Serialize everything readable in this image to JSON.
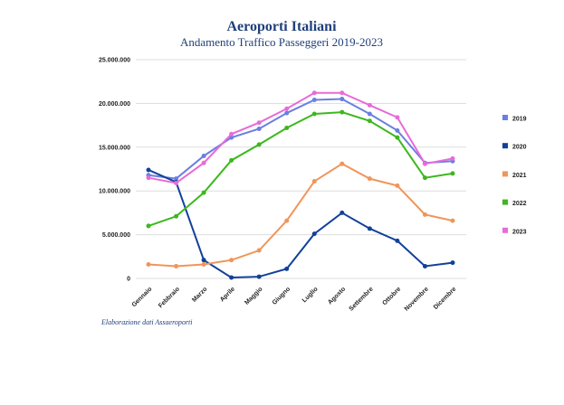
{
  "chart_data": {
    "type": "line",
    "title": "Aeroporti Italiani",
    "subtitle": "Andamento Traffico Passeggeri 2019-2023",
    "note": "Elaborazione dati Assaeroporti",
    "categories": [
      "Gennaio",
      "Febbraio",
      "Marzo",
      "Aprile",
      "Maggio",
      "Giugno",
      "Luglio",
      "Agosto",
      "Settembre",
      "Ottobre",
      "Novembre",
      "Dicembre"
    ],
    "ylim": [
      0,
      25000000
    ],
    "yticks": [
      0,
      {
        "value": 5000000,
        "label": "5.000.000"
      },
      {
        "value": 10000000,
        "label": "10.000.000"
      },
      {
        "value": 15000000,
        "label": "15.000.000"
      },
      {
        "value": 20000000,
        "label": "20.000.000"
      },
      {
        "value": 25000000,
        "label": "25.000.000"
      }
    ],
    "grid": true,
    "legend": "right",
    "series": [
      {
        "name": "2019",
        "color": "#6a7fe2",
        "values": [
          11800000,
          11400000,
          14000000,
          16100000,
          17100000,
          18900000,
          20400000,
          20500000,
          18800000,
          16900000,
          13200000,
          13400000
        ]
      },
      {
        "name": "2020",
        "color": "#12419a",
        "values": [
          12400000,
          11000000,
          2100000,
          100000,
          200000,
          1100000,
          5100000,
          7500000,
          5700000,
          4300000,
          1400000,
          1800000
        ]
      },
      {
        "name": "2021",
        "color": "#f0955a",
        "values": [
          1600000,
          1400000,
          1600000,
          2100000,
          3200000,
          6600000,
          11100000,
          13100000,
          11400000,
          10600000,
          7300000,
          6600000
        ]
      },
      {
        "name": "2022",
        "color": "#3cb81e",
        "values": [
          6000000,
          7100000,
          9800000,
          13500000,
          15300000,
          17200000,
          18800000,
          19000000,
          18000000,
          16100000,
          11500000,
          12000000
        ]
      },
      {
        "name": "2023",
        "color": "#e86bd8",
        "values": [
          11500000,
          10900000,
          13200000,
          16500000,
          17800000,
          19400000,
          21200000,
          21200000,
          19800000,
          18400000,
          13100000,
          13700000
        ]
      }
    ]
  }
}
